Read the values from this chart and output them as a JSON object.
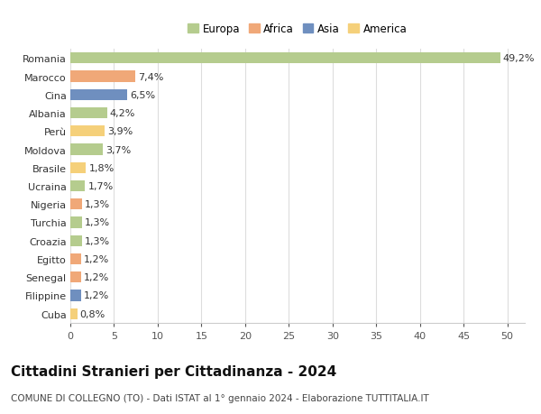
{
  "countries": [
    "Romania",
    "Marocco",
    "Cina",
    "Albania",
    "Perù",
    "Moldova",
    "Brasile",
    "Ucraina",
    "Nigeria",
    "Turchia",
    "Croazia",
    "Egitto",
    "Senegal",
    "Filippine",
    "Cuba"
  ],
  "values": [
    49.2,
    7.4,
    6.5,
    4.2,
    3.9,
    3.7,
    1.8,
    1.7,
    1.3,
    1.3,
    1.3,
    1.2,
    1.2,
    1.2,
    0.8
  ],
  "labels": [
    "49,2%",
    "7,4%",
    "6,5%",
    "4,2%",
    "3,9%",
    "3,7%",
    "1,8%",
    "1,7%",
    "1,3%",
    "1,3%",
    "1,3%",
    "1,2%",
    "1,2%",
    "1,2%",
    "0,8%"
  ],
  "colors": [
    "#b5cc8e",
    "#f0a878",
    "#6f8fbf",
    "#b5cc8e",
    "#f5d07a",
    "#b5cc8e",
    "#f5d07a",
    "#b5cc8e",
    "#f0a878",
    "#b5cc8e",
    "#b5cc8e",
    "#f0a878",
    "#f0a878",
    "#6f8fbf",
    "#f5d07a"
  ],
  "legend_labels": [
    "Europa",
    "Africa",
    "Asia",
    "America"
  ],
  "legend_colors": [
    "#b5cc8e",
    "#f0a878",
    "#6f8fbf",
    "#f5d07a"
  ],
  "title": "Cittadini Stranieri per Cittadinanza - 2024",
  "subtitle": "COMUNE DI COLLEGNO (TO) - Dati ISTAT al 1° gennaio 2024 - Elaborazione TUTTITALIA.IT",
  "xlim": [
    0,
    52
  ],
  "xticks": [
    0,
    5,
    10,
    15,
    20,
    25,
    30,
    35,
    40,
    45,
    50
  ],
  "background_color": "#ffffff",
  "grid_color": "#dddddd",
  "bar_height": 0.6,
  "label_fontsize": 8,
  "tick_fontsize": 8,
  "title_fontsize": 11,
  "subtitle_fontsize": 7.5
}
